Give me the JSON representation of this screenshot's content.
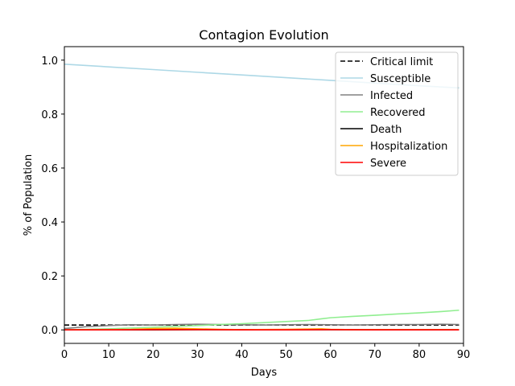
{
  "chart_data": {
    "type": "line",
    "title": "Contagion Evolution",
    "xlabel": "Days",
    "ylabel": "% of Population",
    "xlim": [
      0,
      90
    ],
    "ylim": [
      -0.05,
      1.05
    ],
    "xticks": [
      0,
      10,
      20,
      30,
      40,
      50,
      60,
      70,
      80,
      90
    ],
    "yticks": [
      0.0,
      0.2,
      0.4,
      0.6,
      0.8,
      1.0
    ],
    "grid": false,
    "legend_position": "top-right",
    "series": [
      {
        "name": "Critical limit",
        "color": "#000000",
        "dash": "dashed",
        "x": [
          0,
          89
        ],
        "y": [
          0.018,
          0.018
        ]
      },
      {
        "name": "Susceptible",
        "color": "#add8e6",
        "dash": "solid",
        "x": [
          0,
          10,
          20,
          30,
          40,
          50,
          60,
          70,
          80,
          89
        ],
        "y": [
          0.985,
          0.975,
          0.965,
          0.955,
          0.945,
          0.935,
          0.925,
          0.915,
          0.905,
          0.897
        ]
      },
      {
        "name": "Infected",
        "color": "#808080",
        "dash": "solid",
        "x": [
          0,
          5,
          10,
          15,
          20,
          25,
          30,
          35,
          40,
          45,
          50,
          55,
          60,
          65,
          70,
          75,
          80,
          85,
          89
        ],
        "y": [
          0.005,
          0.012,
          0.016,
          0.019,
          0.018,
          0.02,
          0.021,
          0.02,
          0.019,
          0.018,
          0.019,
          0.02,
          0.019,
          0.018,
          0.019,
          0.02,
          0.02,
          0.021,
          0.02
        ]
      },
      {
        "name": "Recovered",
        "color": "#90ee90",
        "dash": "solid",
        "x": [
          0,
          5,
          10,
          15,
          20,
          25,
          30,
          35,
          40,
          45,
          50,
          55,
          58,
          60,
          65,
          70,
          75,
          80,
          85,
          89
        ],
        "y": [
          0.0,
          0.002,
          0.004,
          0.007,
          0.01,
          0.013,
          0.016,
          0.02,
          0.023,
          0.027,
          0.031,
          0.035,
          0.041,
          0.045,
          0.05,
          0.054,
          0.059,
          0.063,
          0.068,
          0.073
        ]
      },
      {
        "name": "Death",
        "color": "#000000",
        "dash": "solid",
        "x": [
          0,
          10,
          20,
          30,
          40,
          50,
          60,
          70,
          80,
          89
        ],
        "y": [
          0.0,
          0.0,
          0.0,
          0.001,
          0.001,
          0.001,
          0.001,
          0.001,
          0.001,
          0.001
        ]
      },
      {
        "name": "Hospitalization",
        "color": "#ffa500",
        "dash": "solid",
        "x": [
          0,
          10,
          15,
          20,
          25,
          30,
          35,
          40,
          50,
          55,
          58,
          60,
          65,
          70,
          80,
          89
        ],
        "y": [
          0.0,
          0.001,
          0.002,
          0.005,
          0.006,
          0.004,
          0.002,
          0.001,
          0.002,
          0.003,
          0.004,
          0.002,
          0.001,
          0.001,
          0.001,
          0.001
        ]
      },
      {
        "name": "Severe",
        "color": "#ff0000",
        "dash": "solid",
        "x": [
          0,
          10,
          20,
          30,
          40,
          50,
          60,
          70,
          80,
          89
        ],
        "y": [
          0.0,
          0.0,
          0.001,
          0.001,
          0.0,
          0.0,
          0.001,
          0.0,
          0.0,
          0.0
        ]
      }
    ]
  }
}
